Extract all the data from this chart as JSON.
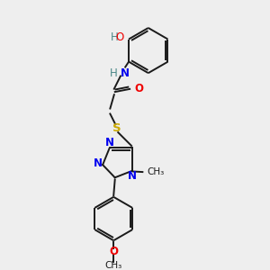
{
  "background_color": "#eeeeee",
  "bond_color": "#1a1a1a",
  "atom_colors": {
    "N": "#0000ee",
    "O": "#ee0000",
    "S": "#ccaa00",
    "H": "#4a8888",
    "C": "#1a1a1a"
  },
  "figsize": [
    3.0,
    3.0
  ],
  "dpi": 100,
  "xlim": [
    0,
    10
  ],
  "ylim": [
    0,
    10
  ]
}
